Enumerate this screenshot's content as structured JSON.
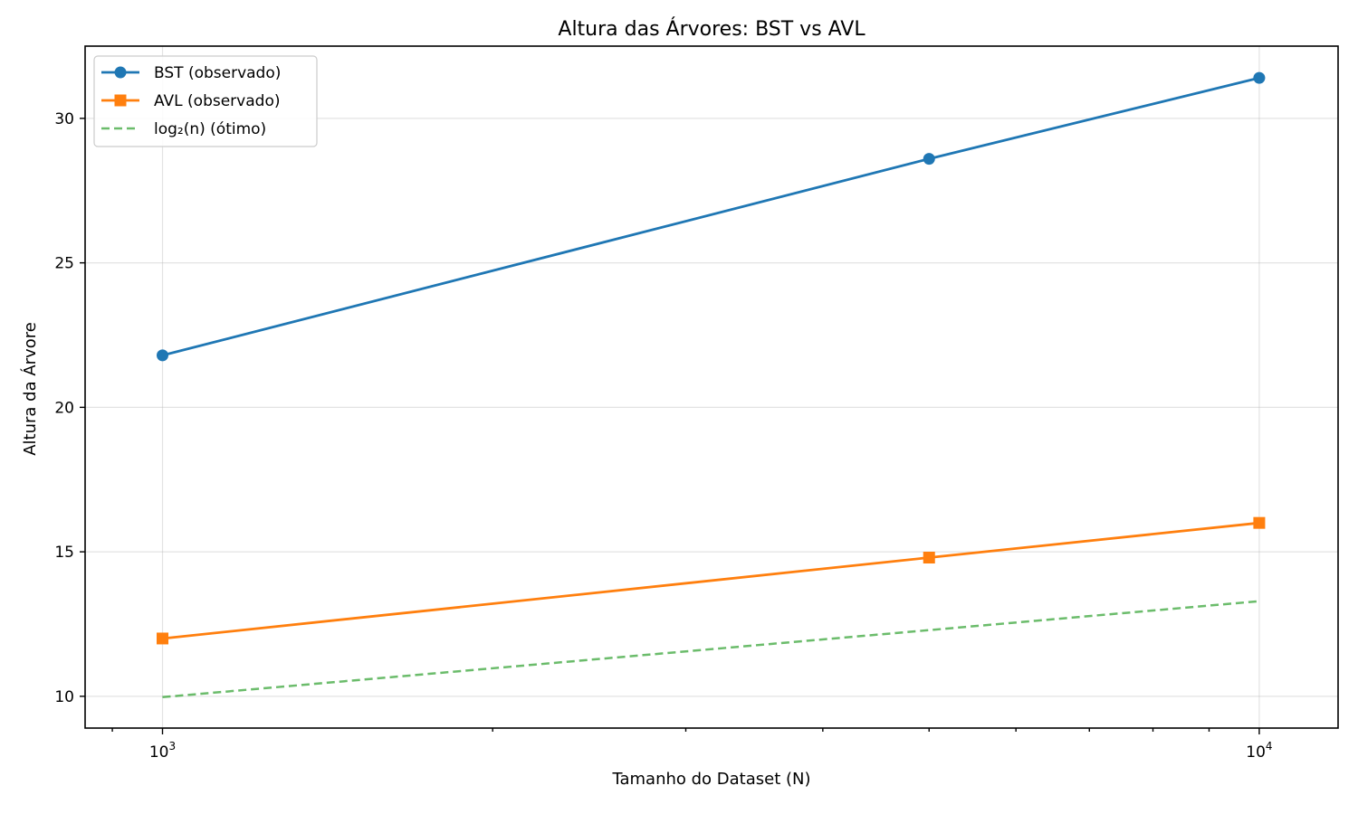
{
  "chart_data": {
    "type": "line",
    "title": "Altura das Árvores: BST vs AVL",
    "xlabel": "Tamanho do Dataset (N)",
    "ylabel": "Altura da Árvore",
    "xscale": "log",
    "xlim": [
      850,
      11800
    ],
    "ylim": [
      8.9,
      32.5
    ],
    "x": [
      1000,
      5000,
      10000
    ],
    "xticks": [
      {
        "value": 1000,
        "base": "10",
        "exp": "3"
      },
      {
        "value": 10000,
        "base": "10",
        "exp": "4"
      }
    ],
    "yticks": [
      10,
      15,
      20,
      25,
      30
    ],
    "grid": true,
    "legend_position": "top-left",
    "series": [
      {
        "name": "BST (observado)",
        "values": [
          21.8,
          28.6,
          31.4
        ],
        "color": "#1f77b4",
        "marker": "circle",
        "linestyle": "solid"
      },
      {
        "name": "AVL (observado)",
        "values": [
          12.0,
          14.8,
          16.0
        ],
        "color": "#ff7f0e",
        "marker": "square",
        "linestyle": "solid"
      },
      {
        "name": "log₂(n) (ótimo)",
        "values": [
          9.97,
          12.29,
          13.29
        ],
        "color": "#2ca02c",
        "marker": "none",
        "linestyle": "dashed"
      }
    ]
  }
}
